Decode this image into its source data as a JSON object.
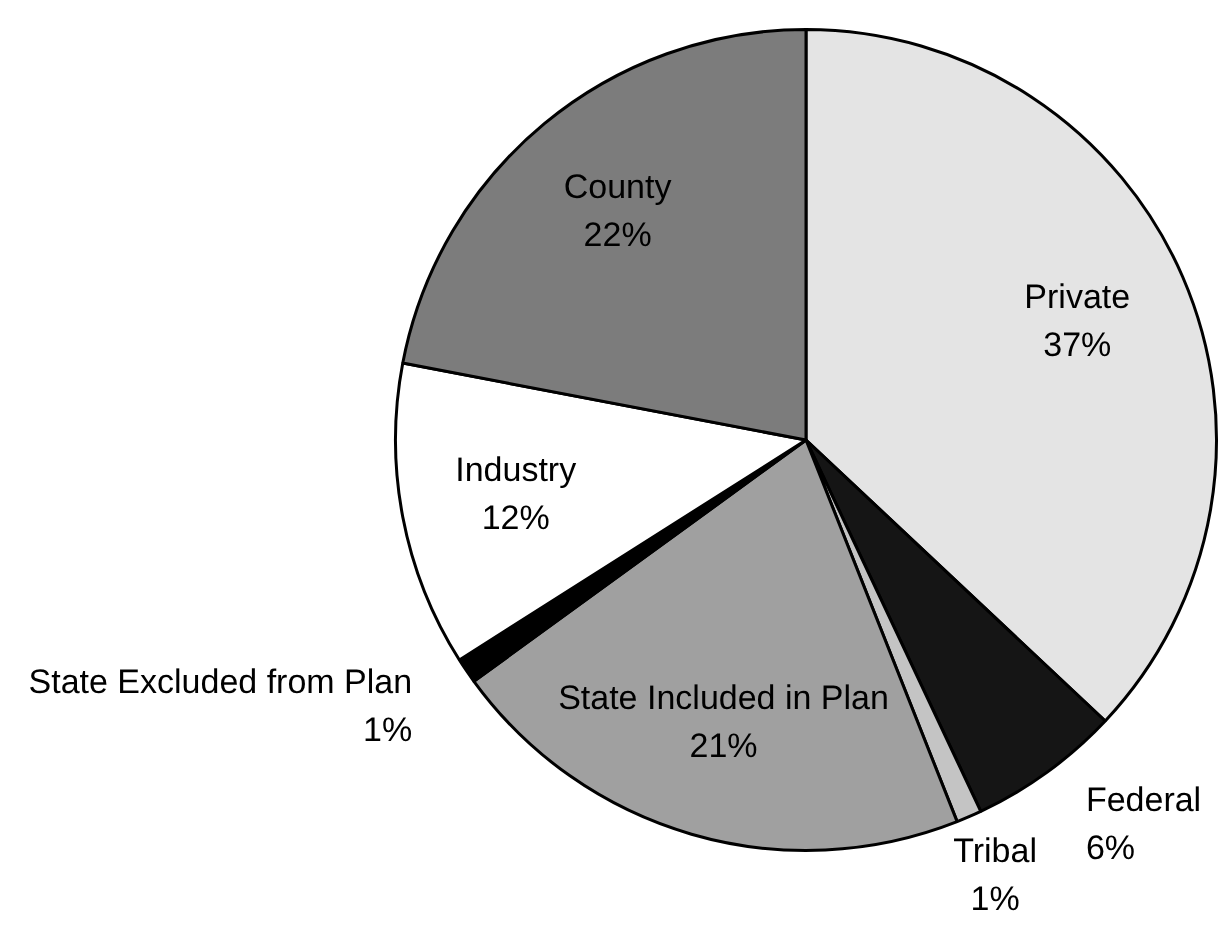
{
  "chart_data": {
    "type": "pie",
    "categories": [
      "Private",
      "Federal",
      "Tribal",
      "State Included in Plan",
      "State Excluded from Plan",
      "Industry",
      "County"
    ],
    "values": [
      37,
      6,
      1,
      21,
      1,
      12,
      22
    ],
    "value_labels": [
      "37%",
      "6%",
      "1%",
      "21%",
      "1%",
      "12%",
      "22%"
    ],
    "colors": [
      "#e4e4e4",
      "#151515",
      "#c4c4c4",
      "#a0a0a0",
      "#000000",
      "#ffffff",
      "#7c7c7c"
    ]
  }
}
